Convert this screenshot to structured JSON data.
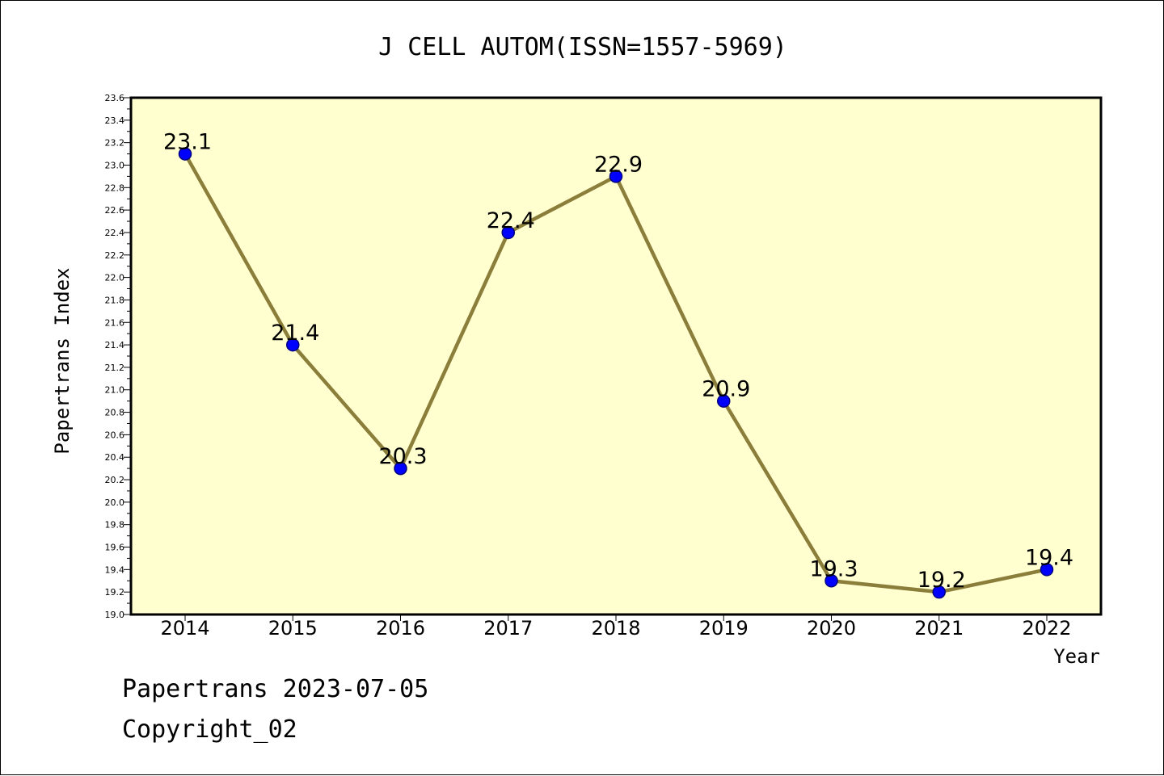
{
  "chart_data": {
    "type": "line",
    "title": "J CELL AUTOM(ISSN=1557-5969)",
    "xlabel": "Year",
    "ylabel": "Papertrans Index",
    "categories": [
      "2014",
      "2015",
      "2016",
      "2017",
      "2018",
      "2019",
      "2020",
      "2021",
      "2022"
    ],
    "series": [
      {
        "values": [
          23.1,
          21.4,
          20.3,
          22.4,
          22.9,
          20.9,
          19.3,
          19.2,
          19.4
        ],
        "labels": [
          "23.1",
          "21.4",
          "20.3",
          "22.4",
          "22.9",
          "20.9",
          "19.3",
          "19.2",
          "19.4"
        ]
      }
    ],
    "ylim": [
      19.0,
      23.6
    ],
    "yticks": [
      "19.0",
      "19.2",
      "19.4",
      "19.6",
      "19.8",
      "20.0",
      "20.2",
      "20.4",
      "20.6",
      "20.8",
      "21.0",
      "21.2",
      "21.4",
      "21.6",
      "21.8",
      "22.0",
      "22.2",
      "22.4",
      "22.6",
      "22.8",
      "23.0",
      "23.2",
      "23.4",
      "23.6"
    ],
    "grid": false,
    "colors": {
      "plot_background": "#ffffd0",
      "line": "#8b7d3a",
      "marker_fill": "#0000ff",
      "marker_edge": "#000080"
    }
  },
  "footer": {
    "line1": "Papertrans 2023-07-05",
    "line2": "Copyright_02"
  }
}
